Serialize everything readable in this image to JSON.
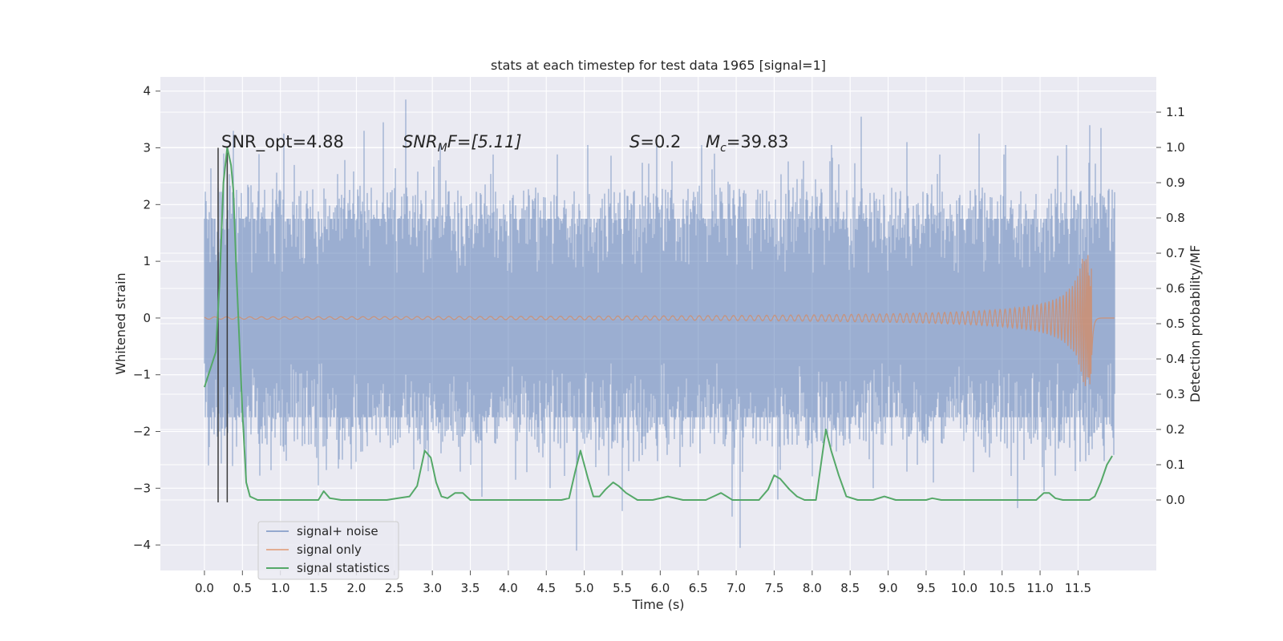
{
  "chart_data": {
    "type": "line",
    "title": "stats at each timestep for test data 1965 [signal=1]",
    "xlabel": "Time (s)",
    "ylabel": "Whitened strain",
    "ylabel_right": "Detection probability/MF",
    "xlim": [
      -0.58,
      12.53
    ],
    "ylim": [
      -4.45,
      4.25
    ],
    "ylim_right": [
      -0.2,
      1.2
    ],
    "x_ticks": [
      "0.0",
      "0.5",
      "1.0",
      "1.5",
      "2.0",
      "2.5",
      "3.0",
      "3.5",
      "4.0",
      "4.5",
      "5.0",
      "5.5",
      "6.0",
      "6.5",
      "7.0",
      "7.5",
      "8.0",
      "8.5",
      "9.0",
      "9.5",
      "10.0",
      "10.5",
      "11.0",
      "11.5"
    ],
    "y_ticks": [
      "4",
      "3",
      "2",
      "1",
      "0",
      "−1",
      "−2",
      "−3",
      "−4"
    ],
    "y_ticks_right": [
      "1.1",
      "1.0",
      "0.9",
      "0.8",
      "0.7",
      "0.6",
      "0.5",
      "0.4",
      "0.3",
      "0.2",
      "0.1",
      "0.0"
    ],
    "grid": true,
    "legend_position": "lower-left",
    "colors": {
      "background": "#eaeaf2",
      "grid": "#ffffff",
      "signal_noise": "#4c72b0",
      "signal_only": "#dd8452",
      "statistics": "#55a868",
      "markers": "#3a3a3a"
    },
    "annotations": {
      "snr_opt": "SNR_opt=4.88",
      "snr_mf_main": "SNR",
      "snr_mf_sub": "M",
      "snr_mf_tail": "F=[5.11]",
      "s_main": "S",
      "s_tail": "=0.2",
      "mc_main": "M",
      "mc_sub": "c",
      "mc_tail": "=39.83"
    },
    "series": [
      {
        "name": "signal+ noise",
        "noise_envelope_typical": [
          -1.75,
          1.75
        ],
        "noise_extremes": [
          [
            0.05,
            -2.6
          ],
          [
            0.25,
            2.9
          ],
          [
            0.38,
            3.3
          ],
          [
            0.55,
            -2.9
          ],
          [
            1.05,
            3.25
          ],
          [
            1.5,
            -2.95
          ],
          [
            2.1,
            3.3
          ],
          [
            2.35,
            3.45
          ],
          [
            2.65,
            3.85
          ],
          [
            2.95,
            -2.7
          ],
          [
            3.1,
            3.05
          ],
          [
            3.65,
            -3.15
          ],
          [
            4.1,
            -2.85
          ],
          [
            4.55,
            -3.0
          ],
          [
            4.9,
            -4.1
          ],
          [
            5.05,
            3.05
          ],
          [
            5.5,
            -3.4
          ],
          [
            5.95,
            3.1
          ],
          [
            6.55,
            3.05
          ],
          [
            6.95,
            -3.5
          ],
          [
            7.05,
            -4.05
          ],
          [
            7.55,
            -3.2
          ],
          [
            8.25,
            3.05
          ],
          [
            8.65,
            3.55
          ],
          [
            8.8,
            -3.0
          ],
          [
            9.25,
            3.1
          ],
          [
            9.6,
            -2.9
          ],
          [
            10.2,
            3.25
          ],
          [
            10.55,
            3.05
          ],
          [
            10.7,
            -3.35
          ],
          [
            11.05,
            -3.05
          ],
          [
            11.35,
            3.05
          ],
          [
            11.65,
            3.4
          ],
          [
            11.8,
            3.35
          ],
          [
            11.9,
            2.25
          ]
        ]
      },
      {
        "name": "signal only",
        "x_start": 0.0,
        "x_end": 11.98,
        "merger_time": 11.68,
        "peak_amplitude": 1.2
      },
      {
        "name": "signal statistics",
        "axis": "right",
        "x": [
          0.0,
          0.15,
          0.2,
          0.25,
          0.3,
          0.35,
          0.38,
          0.42,
          0.45,
          0.5,
          0.55,
          0.6,
          0.7,
          1.0,
          1.3,
          1.5,
          1.57,
          1.65,
          1.8,
          2.0,
          2.2,
          2.4,
          2.55,
          2.7,
          2.8,
          2.9,
          2.98,
          3.05,
          3.12,
          3.2,
          3.3,
          3.4,
          3.5,
          3.7,
          4.0,
          4.3,
          4.5,
          4.7,
          4.8,
          4.88,
          4.95,
          5.05,
          5.12,
          5.2,
          5.28,
          5.38,
          5.45,
          5.55,
          5.7,
          5.9,
          6.1,
          6.3,
          6.5,
          6.6,
          6.8,
          6.95,
          7.1,
          7.3,
          7.42,
          7.5,
          7.58,
          7.7,
          7.8,
          7.9,
          8.05,
          8.18,
          8.25,
          8.35,
          8.45,
          8.6,
          8.8,
          8.95,
          9.1,
          9.3,
          9.5,
          9.58,
          9.7,
          9.9,
          10.2,
          10.5,
          10.8,
          10.95,
          11.05,
          11.12,
          11.2,
          11.3,
          11.5,
          11.65,
          11.72,
          11.8,
          11.88,
          11.95
        ],
        "y": [
          0.32,
          0.42,
          0.62,
          0.9,
          1.0,
          0.95,
          0.88,
          0.65,
          0.5,
          0.25,
          0.05,
          0.01,
          0.0,
          0.0,
          0.0,
          0.0,
          0.025,
          0.005,
          0.0,
          0.0,
          0.0,
          0.0,
          0.005,
          0.01,
          0.04,
          0.14,
          0.12,
          0.05,
          0.01,
          0.005,
          0.02,
          0.02,
          0.0,
          0.0,
          0.0,
          0.0,
          0.0,
          0.0,
          0.005,
          0.08,
          0.14,
          0.06,
          0.01,
          0.01,
          0.03,
          0.05,
          0.04,
          0.02,
          0.0,
          0.0,
          0.01,
          0.0,
          0.0,
          0.0,
          0.02,
          0.0,
          0.0,
          0.0,
          0.03,
          0.07,
          0.06,
          0.03,
          0.01,
          0.0,
          0.0,
          0.2,
          0.14,
          0.07,
          0.01,
          0.0,
          0.0,
          0.01,
          0.0,
          0.0,
          0.0,
          0.005,
          0.0,
          0.0,
          0.0,
          0.0,
          0.0,
          0.0,
          0.02,
          0.02,
          0.005,
          0.0,
          0.0,
          0.0,
          0.01,
          0.05,
          0.1,
          0.125
        ]
      }
    ],
    "vertical_markers": [
      0.18,
      0.3
    ],
    "vertical_marker_range": [
      -3.25,
      3.0
    ]
  }
}
